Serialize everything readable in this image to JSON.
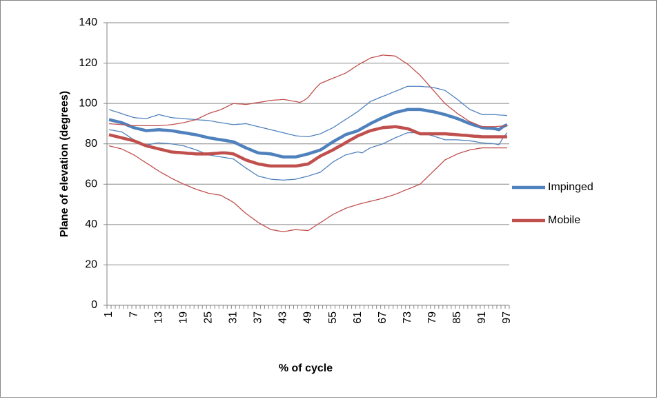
{
  "chart_data": {
    "type": "line",
    "y_label": "Plane of elevation (degrees)",
    "x_label": "% of cycle",
    "categories": [
      1,
      null,
      null,
      null,
      null,
      null,
      7,
      null,
      null,
      null,
      null,
      null,
      13,
      null,
      null,
      null,
      null,
      null,
      19,
      null,
      null,
      null,
      null,
      null,
      25,
      null,
      null,
      null,
      null,
      null,
      31,
      null,
      null,
      null,
      null,
      null,
      37,
      null,
      null,
      null,
      null,
      null,
      43,
      null,
      null,
      null,
      null,
      null,
      49,
      null,
      null,
      null,
      null,
      null,
      55,
      null,
      null,
      null,
      null,
      null,
      61,
      null,
      null,
      null,
      null,
      null,
      67,
      null,
      null,
      null,
      null,
      null,
      73,
      null,
      null,
      null,
      null,
      null,
      79,
      null,
      null,
      null,
      null,
      null,
      85,
      null,
      null,
      null,
      null,
      null,
      91,
      null,
      null,
      null,
      null,
      null,
      97
    ],
    "ylim": [
      0,
      140
    ],
    "yticks": [
      0,
      20,
      40,
      60,
      80,
      100,
      120,
      140
    ],
    "grid": true,
    "legend": "right",
    "series": [
      {
        "name": "Impinged",
        "color": "#4f81bd",
        "width": 4.5,
        "values": [
          92,
          91.5,
          91,
          90.5,
          89.7,
          88.8,
          88,
          87.5,
          87,
          86.5,
          86.7,
          86.8,
          87,
          86.8,
          86.7,
          86.5,
          86.2,
          85.8,
          85.5,
          85.2,
          84.8,
          84.5,
          84,
          83.5,
          83,
          82.7,
          82.3,
          82,
          81.7,
          81.3,
          81,
          80,
          79,
          78,
          77.2,
          76.3,
          75.5,
          75.3,
          75.2,
          75,
          74.5,
          74,
          73.5,
          73.5,
          73.5,
          73.5,
          74,
          74.5,
          75,
          75.7,
          76.3,
          77,
          78.3,
          79.7,
          81,
          82.2,
          83.3,
          84.5,
          85.2,
          85.8,
          86.5,
          87.7,
          88.8,
          90,
          91,
          92,
          93,
          93.8,
          94.7,
          95.5,
          96,
          96.5,
          97,
          97,
          97,
          97,
          96.7,
          96.3,
          96,
          95.5,
          95,
          94.5,
          93.8,
          93.2,
          92.5,
          91.7,
          90.8,
          90,
          89.3,
          88.7,
          88,
          87.8,
          87.7,
          87.5,
          87,
          88.5,
          89.5
        ]
      },
      {
        "color": "#4f81bd",
        "width": 1.3,
        "values": [
          97,
          96.3,
          95.7,
          95,
          94.3,
          93.7,
          93,
          92.8,
          92.7,
          92.5,
          93.2,
          93.8,
          94.5,
          94,
          93.5,
          93,
          92.8,
          92.7,
          92.5,
          92.3,
          92.2,
          92,
          91.8,
          91.7,
          91.5,
          91.2,
          90.8,
          90.5,
          90.2,
          89.8,
          89.5,
          89.7,
          89.8,
          90,
          89.5,
          89,
          88.5,
          88,
          87.5,
          87,
          86.5,
          86,
          85.5,
          85,
          84.5,
          84,
          83.8,
          83.7,
          83.5,
          84,
          84.5,
          85,
          86,
          87,
          88,
          89.3,
          90.7,
          92,
          93.3,
          94.7,
          96,
          97.7,
          99.3,
          101,
          101.8,
          102.7,
          103.5,
          104.3,
          105.2,
          106,
          106.8,
          107.7,
          108.5,
          108.5,
          108.5,
          108.5,
          108.3,
          108.2,
          108,
          107.5,
          107,
          106.5,
          105,
          103.5,
          102,
          100.3,
          98.7,
          97,
          96.2,
          95.3,
          94.5,
          94.5,
          94.5,
          94.5,
          94.3,
          94.2,
          94
        ]
      },
      {
        "color": "#4f81bd",
        "width": 1.3,
        "values": [
          87,
          86.7,
          86.3,
          86,
          84.7,
          83.3,
          82,
          81.2,
          80.3,
          79.5,
          79.8,
          80.2,
          80.5,
          80.3,
          80.2,
          80,
          79.7,
          79.3,
          79,
          78.3,
          77.7,
          77,
          76.2,
          75.3,
          74.5,
          74.2,
          73.8,
          73.5,
          73.2,
          72.8,
          72.5,
          71,
          69.5,
          68,
          66.7,
          65.3,
          64,
          63.5,
          63,
          62.5,
          62.3,
          62.2,
          62,
          62.2,
          62.3,
          62.5,
          63,
          63.5,
          64,
          64.7,
          65.3,
          66,
          67.7,
          69.3,
          71,
          72.2,
          73.3,
          74.5,
          75,
          75.5,
          76,
          75.5,
          76.8,
          78,
          78.7,
          79.3,
          80,
          81,
          82,
          83,
          83.8,
          84.7,
          85.5,
          85.5,
          85.5,
          85.5,
          85,
          84.5,
          84,
          83.3,
          82.7,
          82,
          82,
          82,
          82,
          81.8,
          81.7,
          81.5,
          81.2,
          80.8,
          80.5,
          80.3,
          80.2,
          80,
          79.5,
          83,
          85.5
        ]
      },
      {
        "name": "Mobile",
        "color": "#c0504d",
        "width": 4.5,
        "values": [
          84.5,
          84,
          83.5,
          83,
          82.5,
          82,
          81.5,
          80.7,
          79.8,
          79,
          78.5,
          78,
          77.5,
          77,
          76.5,
          76,
          75.8,
          75.7,
          75.5,
          75.3,
          75.2,
          75,
          75,
          75,
          75,
          75.2,
          75.3,
          75.5,
          75.5,
          75.3,
          75,
          74,
          73,
          72,
          71.3,
          70.7,
          70,
          69.7,
          69.3,
          69,
          69,
          69,
          69,
          69,
          69,
          69,
          69.3,
          69.7,
          70,
          71.3,
          72.7,
          74,
          75,
          76,
          77,
          78.2,
          79.3,
          80.5,
          81.7,
          82.8,
          84,
          84.8,
          85.7,
          86.5,
          87,
          87.5,
          88,
          88.2,
          88.3,
          88.5,
          88.2,
          87.8,
          87.5,
          86.7,
          85.8,
          85,
          85,
          85,
          85,
          85,
          85,
          85,
          84.8,
          84.7,
          84.5,
          84.3,
          84.2,
          84,
          83.8,
          83.7,
          83.5,
          83.5,
          83.5,
          83.5,
          83.5,
          83.5,
          83.5
        ]
      },
      {
        "color": "#c0504d",
        "width": 1.3,
        "values": [
          90,
          89.8,
          89.7,
          89.5,
          89.3,
          89.2,
          89,
          89,
          89,
          89,
          89,
          89,
          89,
          89.2,
          89.3,
          89.5,
          89.8,
          90.2,
          90.5,
          91,
          91.5,
          92,
          93,
          94,
          95,
          95.7,
          96.3,
          97,
          98,
          99,
          100,
          99.8,
          99.7,
          99.5,
          99.8,
          100.2,
          100.5,
          100.8,
          101.2,
          101.5,
          101.7,
          101.8,
          102,
          101.7,
          101.3,
          101,
          100.5,
          101.5,
          103,
          105.5,
          108,
          110,
          110.8,
          111.7,
          112.5,
          113.3,
          114.2,
          115,
          116.3,
          117.7,
          119,
          120.2,
          121.3,
          122.5,
          123,
          123.5,
          124,
          123.8,
          123.7,
          123.5,
          122.2,
          120.8,
          119.5,
          117.7,
          115.8,
          114,
          111.7,
          109.3,
          107,
          104.7,
          102.3,
          100,
          98.3,
          96.7,
          95,
          93.7,
          92.3,
          91,
          90.2,
          89.3,
          88.5,
          88.5,
          88.5,
          88.5,
          88.7,
          88.8,
          89
        ]
      },
      {
        "color": "#c0504d",
        "width": 1.3,
        "values": [
          79,
          78.5,
          78,
          77.5,
          76.5,
          75.5,
          74.5,
          73.2,
          71.8,
          70.5,
          69.2,
          67.8,
          66.5,
          65.3,
          64.2,
          63,
          62,
          61,
          60,
          59.2,
          58.3,
          57.5,
          56.8,
          56.2,
          55.5,
          55.2,
          54.8,
          54.5,
          53.3,
          52.2,
          51,
          49.2,
          47.3,
          45.5,
          44,
          42.5,
          41,
          39.8,
          38.7,
          37.5,
          37.2,
          36.8,
          36.5,
          36.8,
          37.2,
          37.5,
          37.3,
          37.2,
          37,
          38.3,
          39.7,
          41,
          42.3,
          43.7,
          45,
          46,
          47,
          48,
          48.7,
          49.3,
          50,
          50.5,
          51,
          51.5,
          52,
          52.5,
          53,
          53.7,
          54.3,
          55,
          55.8,
          56.7,
          57.5,
          58.3,
          59.2,
          60,
          62,
          64,
          66,
          68,
          70,
          72,
          73,
          74,
          75,
          75.7,
          76.3,
          77,
          77.3,
          77.7,
          78,
          78,
          78,
          78,
          78,
          78,
          78
        ]
      }
    ]
  }
}
